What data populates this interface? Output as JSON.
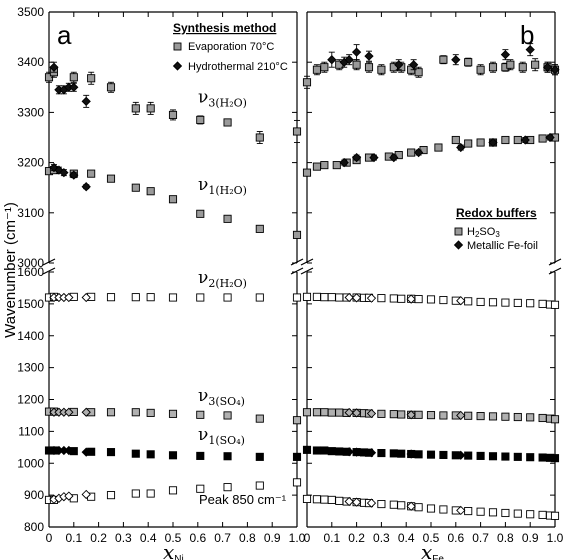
{
  "chart_data": [
    {
      "type": "scatter",
      "panel_label": "a",
      "xlabel": "x",
      "xlabel_sub": "Ni",
      "ylabel": "Wavenumber (cm⁻¹)",
      "xlim": [
        0,
        1.0
      ],
      "x_ticks": [
        "0",
        "0.1",
        "0.2",
        "0.3",
        "0.4",
        "0.5",
        "0.6",
        "0.7",
        "0.8",
        "0.9",
        "1.0"
      ],
      "ylim_upper": [
        3000,
        3500
      ],
      "ylim_lower": [
        800,
        1600
      ],
      "y_ticks_upper": [
        "3000",
        "3100",
        "3200",
        "3300",
        "3400",
        "3500"
      ],
      "y_ticks_lower": [
        "800",
        "900",
        "1000",
        "1100",
        "1200",
        "1300",
        "1400",
        "1500",
        "1600"
      ],
      "legend": {
        "title": "Synthesis method",
        "position": "top-right",
        "items": [
          {
            "label": "Evaporation 70°C",
            "marker": "square-gray"
          },
          {
            "label": "Hydrothermal 210°C",
            "marker": "diamond-black"
          }
        ]
      },
      "band_labels": [
        {
          "main": "ν",
          "sub": "3(H₂O)",
          "y": 3320
        },
        {
          "main": "ν",
          "sub": "1(H₂O)",
          "y": 3145
        },
        {
          "main": "ν",
          "sub": "2(H₂O)",
          "y": 1565
        },
        {
          "main": "ν",
          "sub": "3(SO₄)",
          "y": 1195
        },
        {
          "main": "ν",
          "sub": "1(SO₄)",
          "y": 1073
        }
      ],
      "annotations": [
        "Peak 850 cm⁻¹"
      ],
      "series": [
        {
          "name": "Evaporation 70°C",
          "band": "v3(H2O)",
          "marker": "square",
          "fill": "#9a9a9a",
          "x": [
            0,
            0.02,
            0.1,
            0.17,
            0.25,
            0.35,
            0.41,
            0.5,
            0.61,
            0.72,
            0.85,
            1.0
          ],
          "y": [
            3370,
            3380,
            3370,
            3368,
            3350,
            3308,
            3308,
            3295,
            3285,
            3280,
            3250,
            3262
          ],
          "err": [
            10,
            10,
            10,
            12,
            10,
            12,
            12,
            10,
            8,
            6,
            12,
            22
          ]
        },
        {
          "name": "Hydrothermal 210°C",
          "band": "v3(H2O)",
          "marker": "diamond",
          "fill": "#111111",
          "x": [
            0.02,
            0.04,
            0.06,
            0.08,
            0.1,
            0.15
          ],
          "y": [
            3390,
            3345,
            3345,
            3350,
            3350,
            3322
          ],
          "err": [
            10,
            8,
            8,
            8,
            8,
            12
          ]
        },
        {
          "name": "Evaporation 70°C",
          "band": "v1(H2O)",
          "marker": "square",
          "fill": "#9a9a9a",
          "x": [
            0,
            0.02,
            0.1,
            0.17,
            0.25,
            0.35,
            0.41,
            0.5,
            0.61,
            0.72,
            0.85,
            1.0
          ],
          "y": [
            3183,
            3185,
            3178,
            3178,
            3168,
            3150,
            3143,
            3127,
            3098,
            3088,
            3068,
            3056
          ],
          "err": [
            4,
            4,
            4,
            3,
            3,
            3,
            3,
            5,
            5,
            3,
            3,
            3
          ]
        },
        {
          "name": "Hydrothermal 210°C",
          "band": "v1(H2O)",
          "marker": "diamond",
          "fill": "#111111",
          "x": [
            0.02,
            0.04,
            0.06,
            0.1,
            0.15
          ],
          "y": [
            3190,
            3185,
            3180,
            3175,
            3152
          ],
          "err": [
            6,
            6,
            6,
            5,
            4
          ]
        },
        {
          "name": "Evaporation 70°C",
          "band": "v2(H2O)",
          "marker": "square",
          "fill": "#ffffff",
          "x": [
            0,
            0.02,
            0.1,
            0.17,
            0.25,
            0.35,
            0.41,
            0.5,
            0.61,
            0.72,
            0.85,
            1.0
          ],
          "y": [
            1520,
            1522,
            1522,
            1522,
            1521,
            1521,
            1521,
            1520,
            1520,
            1520,
            1520,
            1520
          ]
        },
        {
          "name": "Hydrothermal 210°C",
          "band": "v2(H2O)",
          "marker": "diamond",
          "fill": "#ffffff",
          "x": [
            0.02,
            0.04,
            0.06,
            0.08,
            0.15
          ],
          "y": [
            1520,
            1520,
            1520,
            1520,
            1520
          ]
        },
        {
          "name": "Evaporation 70°C",
          "band": "v3(SO4)",
          "marker": "square",
          "fill": "#b0b0b0",
          "x": [
            0,
            0.02,
            0.1,
            0.17,
            0.25,
            0.35,
            0.41,
            0.5,
            0.61,
            0.72,
            0.85,
            1.0
          ],
          "y": [
            1162,
            1162,
            1161,
            1160,
            1160,
            1160,
            1158,
            1155,
            1152,
            1150,
            1140,
            1135
          ]
        },
        {
          "name": "Hydrothermal 210°C",
          "band": "v3(SO4)",
          "marker": "diamond",
          "fill": "#b0b0b0",
          "x": [
            0.02,
            0.04,
            0.06,
            0.08,
            0.15
          ],
          "y": [
            1160,
            1160,
            1160,
            1160,
            1160
          ]
        },
        {
          "name": "Evaporation 70°C",
          "band": "v1(SO4)",
          "marker": "square",
          "fill": "#000000",
          "x": [
            0,
            0.02,
            0.1,
            0.17,
            0.25,
            0.35,
            0.41,
            0.5,
            0.61,
            0.72,
            0.85,
            1.0
          ],
          "y": [
            1040,
            1040,
            1038,
            1036,
            1035,
            1030,
            1028,
            1025,
            1023,
            1022,
            1020,
            1020
          ]
        },
        {
          "name": "Hydrothermal 210°C",
          "band": "v1(SO4)",
          "marker": "diamond",
          "fill": "#000000",
          "x": [
            0.02,
            0.04,
            0.06,
            0.08,
            0.15
          ],
          "y": [
            1040,
            1040,
            1040,
            1040,
            1035
          ]
        },
        {
          "name": "Evaporation 70°C",
          "band": "peak850",
          "marker": "square",
          "fill": "#ffffff",
          "x": [
            0,
            0.02,
            0.1,
            0.17,
            0.25,
            0.35,
            0.41,
            0.5,
            0.61,
            0.72,
            0.85,
            1.0
          ],
          "y": [
            885,
            885,
            890,
            895,
            900,
            905,
            905,
            915,
            920,
            925,
            930,
            940
          ]
        },
        {
          "name": "Hydrothermal 210°C",
          "band": "peak850",
          "marker": "diamond",
          "fill": "#ffffff",
          "x": [
            0.02,
            0.04,
            0.06,
            0.08,
            0.15
          ],
          "y": [
            887,
            890,
            895,
            897,
            902
          ]
        }
      ]
    },
    {
      "type": "scatter",
      "panel_label": "b",
      "xlabel": "x",
      "xlabel_sub": "Fe",
      "xlim": [
        0,
        1.0
      ],
      "x_ticks": [
        "0",
        "0.1",
        "0.2",
        "0.3",
        "0.4",
        "0.5",
        "0.6",
        "0.7",
        "0.8",
        "0.9",
        "1.0"
      ],
      "ylim_upper": [
        3000,
        3500
      ],
      "ylim_lower": [
        800,
        1600
      ],
      "legend": {
        "title": "Redox buffers",
        "position": "middle-right",
        "items": [
          {
            "label": "H",
            "label_sub": "2",
            "label_tail": "SO",
            "label_sub2": "3",
            "marker": "square-gray"
          },
          {
            "label": "Metallic Fe-foil",
            "marker": "diamond-black"
          }
        ]
      },
      "series": [
        {
          "name": "H2SO3",
          "band": "v3(H2O)",
          "marker": "square",
          "fill": "#9a9a9a",
          "x": [
            0,
            0.04,
            0.07,
            0.13,
            0.2,
            0.25,
            0.3,
            0.35,
            0.38,
            0.42,
            0.45,
            0.55,
            0.65,
            0.7,
            0.75,
            0.8,
            0.82,
            0.87,
            0.92,
            0.97,
            1.0
          ],
          "y": [
            3360,
            3385,
            3390,
            3395,
            3395,
            3390,
            3385,
            3390,
            3390,
            3385,
            3380,
            3405,
            3400,
            3385,
            3390,
            3390,
            3395,
            3390,
            3395,
            3390,
            3385
          ],
          "err": [
            12,
            10,
            10,
            10,
            10,
            10,
            10,
            10,
            10,
            10,
            10,
            8,
            8,
            10,
            10,
            8,
            10,
            10,
            12,
            10,
            10
          ]
        },
        {
          "name": "Metallic Fe-foil",
          "band": "v3(H2O)",
          "marker": "diamond",
          "fill": "#111111",
          "x": [
            0.1,
            0.15,
            0.17,
            0.2,
            0.25,
            0.37,
            0.43,
            0.6,
            0.8,
            0.9,
            0.97,
            1.0
          ],
          "y": [
            3405,
            3400,
            3405,
            3420,
            3412,
            3395,
            3395,
            3405,
            3415,
            3425,
            3390,
            3385
          ],
          "err": [
            15,
            10,
            10,
            15,
            10,
            10,
            10,
            10,
            10,
            12,
            10,
            10
          ]
        },
        {
          "name": "H2SO3",
          "band": "v1(H2O)",
          "marker": "square",
          "fill": "#9a9a9a",
          "x": [
            0,
            0.04,
            0.07,
            0.12,
            0.16,
            0.2,
            0.25,
            0.33,
            0.37,
            0.42,
            0.47,
            0.53,
            0.6,
            0.65,
            0.7,
            0.75,
            0.8,
            0.85,
            0.9,
            0.95,
            1.0
          ],
          "y": [
            3180,
            3192,
            3195,
            3195,
            3200,
            3205,
            3210,
            3212,
            3215,
            3220,
            3225,
            3230,
            3245,
            3238,
            3240,
            3240,
            3245,
            3245,
            3245,
            3248,
            3250
          ],
          "err": [
            4,
            4,
            4,
            4,
            4,
            4,
            4,
            4,
            4,
            4,
            4,
            4,
            4,
            4,
            4,
            4,
            4,
            4,
            4,
            4,
            4
          ]
        },
        {
          "name": "Metallic Fe-foil",
          "band": "v1(H2O)",
          "marker": "diamond",
          "fill": "#111111",
          "x": [
            0.15,
            0.2,
            0.27,
            0.35,
            0.45,
            0.62,
            0.75,
            0.88,
            0.98
          ],
          "y": [
            3200,
            3210,
            3210,
            3210,
            3220,
            3230,
            3240,
            3245,
            3250
          ],
          "err": [
            5,
            5,
            5,
            5,
            5,
            5,
            5,
            5,
            5
          ]
        },
        {
          "name": "H2SO3",
          "band": "v2(H2O)",
          "marker": "square",
          "fill": "#ffffff",
          "x": [
            0,
            0.04,
            0.07,
            0.1,
            0.13,
            0.16,
            0.2,
            0.23,
            0.25,
            0.3,
            0.35,
            0.38,
            0.42,
            0.45,
            0.5,
            0.55,
            0.6,
            0.65,
            0.7,
            0.75,
            0.8,
            0.85,
            0.9,
            0.95,
            0.98,
            1.0
          ],
          "y": [
            1522,
            1522,
            1521,
            1521,
            1520,
            1520,
            1520,
            1519,
            1519,
            1518,
            1517,
            1516,
            1516,
            1515,
            1514,
            1512,
            1510,
            1508,
            1506,
            1505,
            1504,
            1503,
            1502,
            1500,
            1498,
            1497
          ]
        },
        {
          "name": "Metallic Fe-foil",
          "band": "v2(H2O)",
          "marker": "diamond",
          "fill": "#ffffff",
          "x": [
            0.17,
            0.2,
            0.26,
            0.42,
            0.62
          ],
          "y": [
            1520,
            1519,
            1518,
            1515,
            1510
          ]
        },
        {
          "name": "H2SO3",
          "band": "v3(SO4)",
          "marker": "square",
          "fill": "#b0b0b0",
          "x": [
            0,
            0.04,
            0.07,
            0.1,
            0.13,
            0.16,
            0.2,
            0.23,
            0.25,
            0.3,
            0.35,
            0.38,
            0.42,
            0.45,
            0.5,
            0.55,
            0.6,
            0.65,
            0.7,
            0.75,
            0.8,
            0.85,
            0.9,
            0.95,
            0.98,
            1.0
          ],
          "y": [
            1160,
            1160,
            1160,
            1159,
            1159,
            1158,
            1158,
            1157,
            1156,
            1155,
            1154,
            1153,
            1152,
            1152,
            1151,
            1150,
            1150,
            1149,
            1148,
            1147,
            1146,
            1145,
            1144,
            1142,
            1140,
            1138
          ]
        },
        {
          "name": "Metallic Fe-foil",
          "band": "v3(SO4)",
          "marker": "diamond",
          "fill": "#b0b0b0",
          "x": [
            0.17,
            0.2,
            0.26,
            0.42,
            0.62
          ],
          "y": [
            1159,
            1158,
            1156,
            1152,
            1150
          ]
        },
        {
          "name": "H2SO3",
          "band": "v1(SO4)",
          "marker": "square",
          "fill": "#000000",
          "x": [
            0,
            0.04,
            0.07,
            0.1,
            0.13,
            0.16,
            0.2,
            0.23,
            0.25,
            0.3,
            0.35,
            0.38,
            0.42,
            0.45,
            0.5,
            0.55,
            0.6,
            0.65,
            0.7,
            0.75,
            0.8,
            0.85,
            0.9,
            0.95,
            0.98,
            1.0
          ],
          "y": [
            1042,
            1040,
            1040,
            1038,
            1037,
            1036,
            1035,
            1034,
            1033,
            1032,
            1031,
            1030,
            1029,
            1028,
            1027,
            1026,
            1025,
            1024,
            1023,
            1022,
            1021,
            1020,
            1019,
            1018,
            1017,
            1016
          ]
        },
        {
          "name": "Metallic Fe-foil",
          "band": "v1(SO4)",
          "marker": "diamond",
          "fill": "#000000",
          "x": [
            0.17,
            0.2,
            0.26,
            0.42,
            0.62
          ],
          "y": [
            1036,
            1035,
            1033,
            1029,
            1025
          ]
        },
        {
          "name": "H2SO3",
          "band": "peak850",
          "marker": "square",
          "fill": "#ffffff",
          "x": [
            0,
            0.04,
            0.07,
            0.1,
            0.13,
            0.16,
            0.2,
            0.23,
            0.25,
            0.3,
            0.35,
            0.38,
            0.42,
            0.45,
            0.5,
            0.55,
            0.6,
            0.65,
            0.7,
            0.75,
            0.8,
            0.85,
            0.9,
            0.95,
            0.98,
            1.0
          ],
          "y": [
            888,
            887,
            886,
            885,
            882,
            880,
            878,
            876,
            875,
            872,
            870,
            868,
            865,
            862,
            858,
            855,
            852,
            850,
            848,
            846,
            844,
            842,
            840,
            838,
            836,
            835
          ]
        },
        {
          "name": "Metallic Fe-foil",
          "band": "peak850",
          "marker": "diamond",
          "fill": "#ffffff",
          "x": [
            0.17,
            0.2,
            0.26,
            0.42,
            0.62
          ],
          "y": [
            880,
            878,
            875,
            865,
            852
          ]
        }
      ]
    }
  ]
}
